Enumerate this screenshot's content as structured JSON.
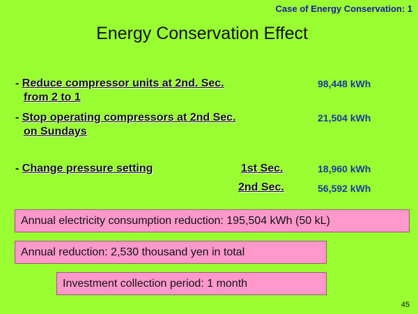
{
  "header": {
    "case_label": "Case of Energy Conservation: 1"
  },
  "title": "Energy Conservation Effect",
  "items": [
    {
      "bullet": "- ",
      "line1": "Reduce compressor units at 2nd. Sec.",
      "line2": "from 2 to 1",
      "value": "98,448 kWh"
    },
    {
      "bullet": "- ",
      "line1": "Stop operating compressors at 2nd Sec.",
      "line2": "on Sundays",
      "value": "21,504 kWh"
    },
    {
      "bullet": "- ",
      "line1": "Change pressure setting",
      "sub1": "1st Sec.",
      "sub2": "2nd Sec.",
      "value1": "18,960 kWh",
      "value2": "56,592 kWh"
    }
  ],
  "summary": {
    "annual_consumption": "Annual electricity consumption reduction: 195,504 kWh (50 kL)",
    "annual_reduction": "Annual reduction: 2,530 thousand yen in total",
    "investment_period": "Investment collection period: 1 month"
  },
  "page_number": "45",
  "colors": {
    "background": "#99ff33",
    "box_fill": "#ff99cc",
    "header_text": "#1a1aa6",
    "value_text": "#1a3aa0"
  }
}
